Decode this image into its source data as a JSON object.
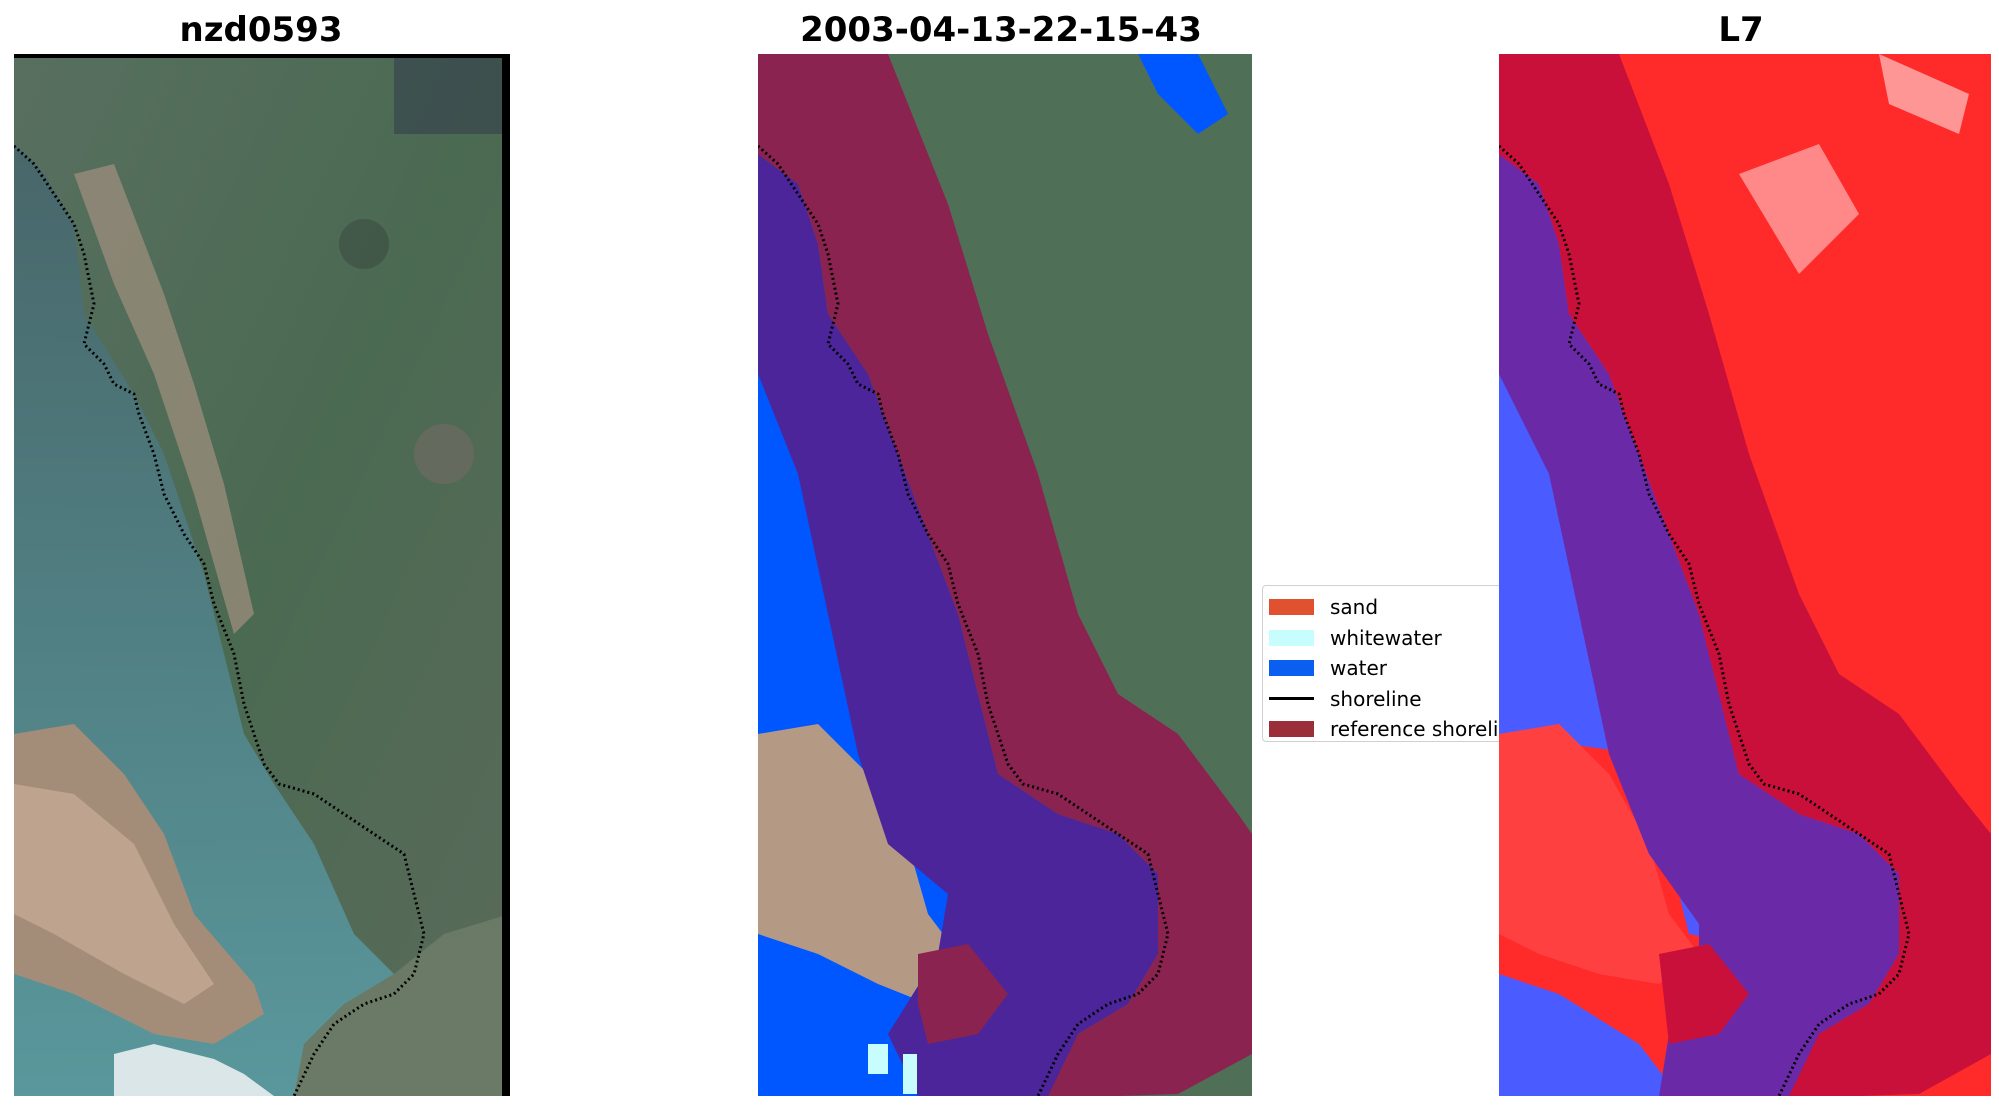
{
  "panels": [
    {
      "title": "nzd0593"
    },
    {
      "title": "2003-04-13-22-15-43"
    },
    {
      "title": "L7"
    }
  ],
  "legend": {
    "items": [
      {
        "label": "sand",
        "color": "#e0522f",
        "kind": "patch"
      },
      {
        "label": "whitewater",
        "color": "#c8fdfd",
        "kind": "patch"
      },
      {
        "label": "water",
        "color": "#0a5ff0",
        "kind": "patch"
      },
      {
        "label": "shoreline",
        "color": "#000000",
        "kind": "line"
      },
      {
        "label": "reference shoreline",
        "color": "#9a2f3a",
        "kind": "patch"
      }
    ]
  },
  "colors": {
    "rgb_green": "#4f6f56",
    "rgb_water": "#4d7e86",
    "rgb_sand": "#b59a86",
    "class_overlay": "#8b2350",
    "class_water": "#0057ff",
    "class_mix": "#4b2599",
    "index_red": "#ff2a2a",
    "index_blue": "#4a5cff"
  }
}
